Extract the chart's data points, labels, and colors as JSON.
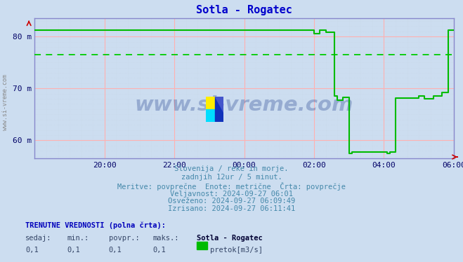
{
  "title": "Sotla - Rogatec",
  "title_color": "#0000cc",
  "title_fontsize": 11,
  "bg_color": "#ccddf0",
  "plot_bg_color": "#ccddf0",
  "grid_color_major": "#ffb0b0",
  "grid_color_minor": "#c8d8e8",
  "ylim": [
    56.5,
    83.5
  ],
  "yticks": [
    60,
    70,
    80
  ],
  "ytick_labels": [
    "60 m",
    "70 m",
    "80 m"
  ],
  "xlim": [
    0,
    144
  ],
  "xtick_positions": [
    24,
    48,
    72,
    96,
    120,
    144
  ],
  "xtick_labels": [
    "20:00",
    "22:00",
    "00:00",
    "02:00",
    "04:00",
    "06:00"
  ],
  "line_color": "#00bb00",
  "dashed_line_color": "#00cc00",
  "dashed_line_y": 76.5,
  "watermark_text": "www.si-vreme.com",
  "watermark_color": "#1a3a8a",
  "watermark_alpha": 0.3,
  "left_label": "www.si-vreme.com",
  "footer_lines": [
    "Slovenija / reke in morje.",
    "zadnjih 12ur / 5 minut.",
    "Meritve: povprečne  Enote: metrične  Črta: povprečje",
    "Veljavnost: 2024-09-27 06:01",
    "Osveženo: 2024-09-27 06:09:49",
    "Izrisano: 2024-09-27 06:11:41"
  ],
  "footer_color": "#4488aa",
  "footer_fontsize": 7.5,
  "bottom_label1": "TRENUTNE VREDNOSTI (polna črta):",
  "bottom_cols": [
    "sedaj:",
    "min.:",
    "povpr.:",
    "maks.:",
    "Sotla - Rogatec"
  ],
  "bottom_vals": [
    "0,1",
    "0,1",
    "0,1",
    "0,1"
  ],
  "bottom_legend_color": "#00bb00",
  "bottom_legend_label": "pretok[m3/s]",
  "x_data": [
    0,
    96,
    96,
    98,
    98,
    100,
    100,
    103,
    103,
    104,
    104,
    106,
    106,
    108,
    108,
    109,
    109,
    121,
    121,
    122,
    122,
    124,
    124,
    132,
    132,
    134,
    134,
    137,
    137,
    140,
    140,
    142,
    142,
    144
  ],
  "y_data": [
    81.2,
    81.2,
    80.5,
    80.5,
    81.2,
    81.2,
    80.8,
    80.8,
    68.5,
    68.5,
    67.8,
    67.8,
    68.3,
    68.3,
    57.5,
    57.5,
    57.8,
    57.8,
    57.5,
    57.5,
    57.8,
    57.8,
    68.2,
    68.2,
    68.5,
    68.5,
    68.0,
    68.0,
    68.5,
    68.5,
    69.2,
    69.2,
    81.2,
    81.2
  ]
}
